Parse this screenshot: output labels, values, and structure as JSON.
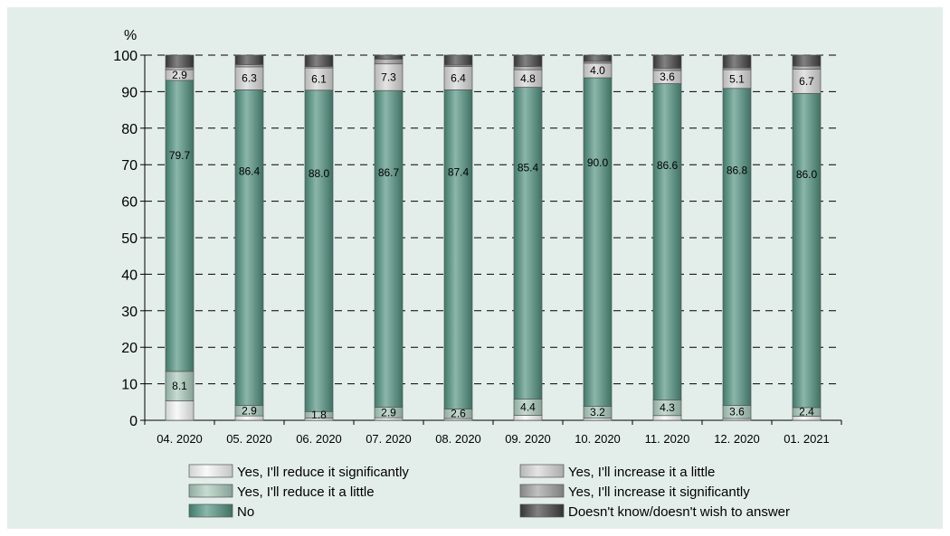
{
  "colors": {
    "background": "#E3EEEA",
    "reduce_significantly": "#F4F8F6",
    "reduce_little": "#A8C9BC",
    "no": "#4D8F7C",
    "increase_little": "#D6D6D6",
    "increase_significantly": "#9E9E9E",
    "dont_know": "#3E3E3E",
    "grid": "#000000"
  },
  "chart_data": {
    "type": "bar",
    "stacked": true,
    "ylabel": "%",
    "ylim": [
      0,
      100
    ],
    "yticks": [
      "0",
      "10",
      "20",
      "30",
      "40",
      "50",
      "60",
      "70",
      "80",
      "90",
      "100"
    ],
    "grid": "dashed-horizontal",
    "legend_placement": "bottom",
    "categories": [
      "04. 2020",
      "05. 2020",
      "06. 2020",
      "07. 2020",
      "08. 2020",
      "09. 2020",
      "10. 2020",
      "11. 2020",
      "12. 2020",
      "01. 2021"
    ],
    "series": [
      {
        "name": "Yes, I'll reduce it significantly",
        "values": [
          5.3,
          1.2,
          0.6,
          0.7,
          0.5,
          1.4,
          0.6,
          1.3,
          0.5,
          1.1
        ]
      },
      {
        "name": "Yes, I'll reduce it a little",
        "values": [
          8.1,
          2.9,
          1.8,
          2.9,
          2.6,
          4.4,
          3.2,
          4.3,
          3.6,
          2.4
        ]
      },
      {
        "name": "No",
        "values": [
          79.7,
          86.4,
          88.0,
          86.7,
          87.4,
          85.4,
          90.0,
          86.6,
          86.8,
          86.0
        ]
      },
      {
        "name": "Yes, I'll increase it a little",
        "values": [
          2.9,
          6.3,
          6.1,
          7.3,
          6.4,
          4.8,
          4.0,
          3.6,
          5.1,
          6.7
        ]
      },
      {
        "name": "Yes, I'll increase it significantly",
        "values": [
          0.7,
          0.6,
          0.4,
          1.3,
          0.4,
          0.9,
          0.5,
          0.6,
          0.5,
          0.8
        ]
      },
      {
        "name": "Doesn't know/doesn't wish to answer",
        "values": [
          3.3,
          2.6,
          3.1,
          1.1,
          2.7,
          3.1,
          1.7,
          3.6,
          3.5,
          3.0
        ]
      }
    ],
    "data_labels": {
      "reduce_little": [
        "8.1",
        "2.9",
        "1.8",
        "2.9",
        "2.6",
        "4.4",
        "3.2",
        "4.3",
        "3.6",
        "2.4"
      ],
      "no": [
        "79.7",
        "86.4",
        "88.0",
        "86.7",
        "87.4",
        "85.4",
        "90.0",
        "86.6",
        "86.8",
        "86.0"
      ],
      "increase_little": [
        "2.9",
        "6.3",
        "6.1",
        "7.3",
        "6.4",
        "4.8",
        "4.0",
        "3.6",
        "5.1",
        "6.7"
      ]
    }
  },
  "legend": [
    {
      "label": "Yes, I'll reduce it significantly",
      "color_key": "reduce_significantly"
    },
    {
      "label": "Yes, I'll increase it a little",
      "color_key": "increase_little"
    },
    {
      "label": "Yes, I'll reduce it a little",
      "color_key": "reduce_little"
    },
    {
      "label": "Yes, I'll increase it significantly",
      "color_key": "increase_significantly"
    },
    {
      "label": "No",
      "color_key": "no"
    },
    {
      "label": "Doesn't know/doesn't wish to answer",
      "color_key": "dont_know"
    }
  ]
}
